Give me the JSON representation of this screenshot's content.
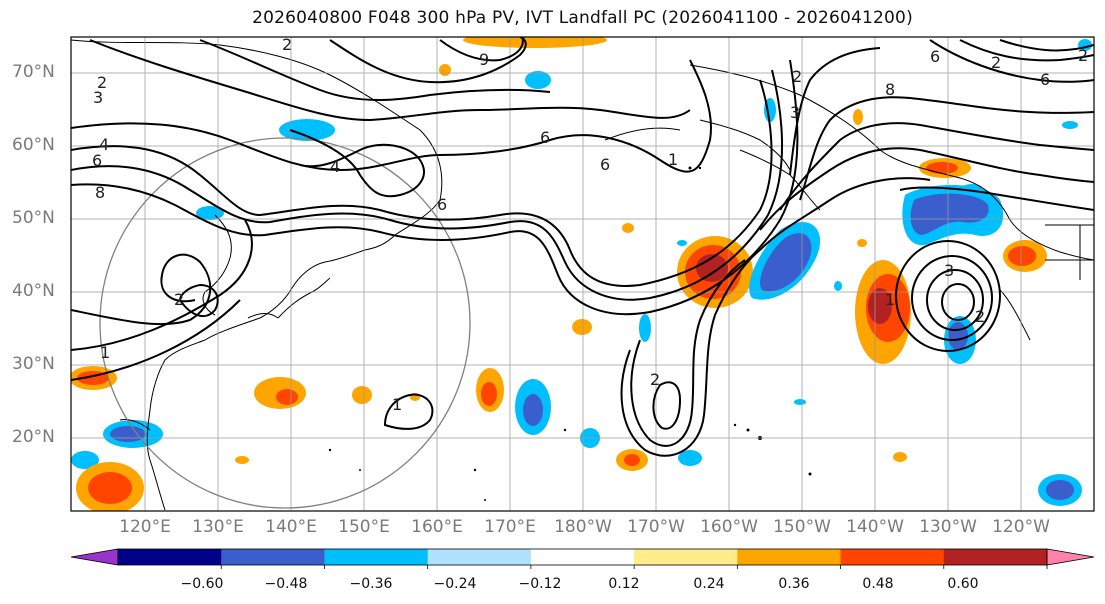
{
  "title": "2026040800 F048 300 hPa PV, IVT Landfall PC (2026041100 - 2026041200)",
  "lat_labels": [
    "70°N",
    "60°N",
    "50°N",
    "40°N",
    "30°N",
    "20°N"
  ],
  "lon_labels": [
    "120°E",
    "130°E",
    "140°E",
    "150°E",
    "160°E",
    "170°E",
    "180°W",
    "170°W",
    "160°W",
    "150°W",
    "140°W",
    "130°W",
    "120°W"
  ],
  "colorbar": {
    "ticks": [
      "−0.60",
      "−0.48",
      "−0.36",
      "−0.24",
      "−0.12",
      "0.12",
      "0.24",
      "0.36",
      "0.48",
      "0.60"
    ],
    "colors": [
      "#9a32cd",
      "#00008b",
      "#3a5fcd",
      "#00bfff",
      "#b0e2ff",
      "#ffffff",
      "#ffec8b",
      "#ffa500",
      "#ff4500",
      "#b22222",
      "#ff82ab"
    ]
  },
  "contour_labels": [
    "2",
    "3",
    "4",
    "6",
    "8",
    "9",
    "6",
    "4",
    "6",
    "6",
    "1",
    "2",
    "1",
    "2",
    "3",
    "2",
    "6",
    "8",
    "6",
    "2",
    "1",
    "3",
    "2",
    "1",
    "2",
    "2"
  ]
}
